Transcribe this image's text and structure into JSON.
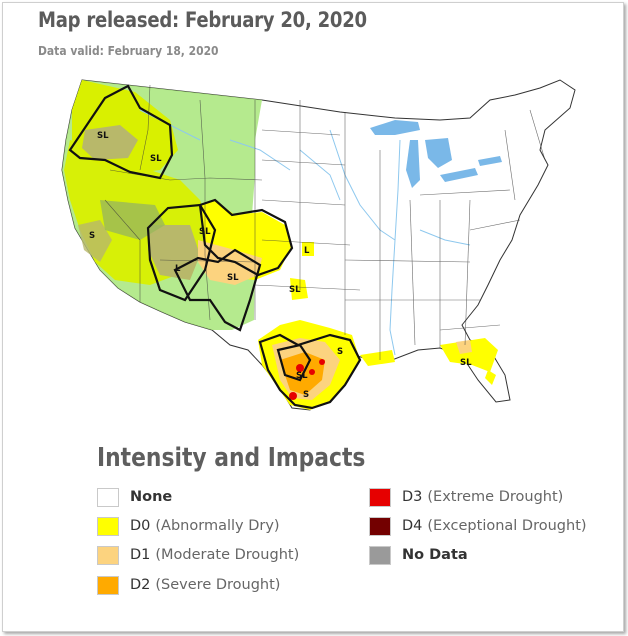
{
  "header": {
    "title": "Map released: February 20, 2020",
    "subtitle": "Data valid: February 18, 2020"
  },
  "map": {
    "impact_labels": [
      "SL",
      "SL",
      "S",
      "SL",
      "L",
      "L",
      "SL",
      "SL",
      "S",
      "SL",
      "S",
      "SL"
    ],
    "colors": {
      "none": "#ffffff",
      "d0": "#ffff00",
      "d1": "#fcd37f",
      "d2": "#ffaa00",
      "d3": "#e60000",
      "d4": "#730000",
      "no_data": "#9a9a9a",
      "short_long_overlay": "#a8e67a",
      "water": "#8ec8ee",
      "lakes": "#7ab8e8",
      "state_lines": "#3a3a3a",
      "impact_line": "#111111"
    }
  },
  "legend": {
    "title": "Intensity and Impacts",
    "items": [
      {
        "code": "None",
        "name": "",
        "color": "#ffffff"
      },
      {
        "code": "D0",
        "name": "(Abnormally Dry)",
        "color": "#ffff00"
      },
      {
        "code": "D1",
        "name": "(Moderate Drought)",
        "color": "#fcd37f"
      },
      {
        "code": "D2",
        "name": "(Severe Drought)",
        "color": "#ffaa00"
      },
      {
        "code": "D3",
        "name": "(Extreme Drought)",
        "color": "#e60000"
      },
      {
        "code": "D4",
        "name": "(Exceptional Drought)",
        "color": "#730000"
      },
      {
        "code": "No Data",
        "name": "",
        "color": "#9a9a9a"
      }
    ]
  }
}
